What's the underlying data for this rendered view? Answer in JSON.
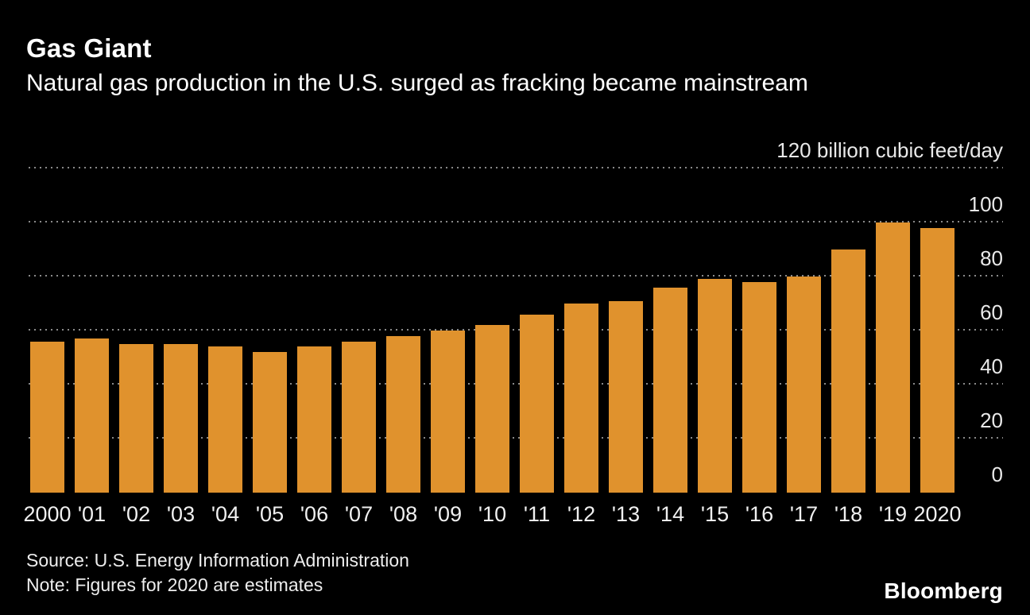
{
  "header": {
    "title": "Gas Giant",
    "subtitle": "Natural gas production in the U.S. surged as fracking became mainstream"
  },
  "chart_data": {
    "type": "bar",
    "title": "Gas Giant",
    "subtitle": "Natural gas production in the U.S. surged as fracking became mainstream",
    "unit_label": "120 billion cubic feet/day",
    "categories": [
      "2000",
      "'01",
      "'02",
      "'03",
      "'04",
      "'05",
      "'06",
      "'07",
      "'08",
      "'09",
      "'10",
      "'11",
      "'12",
      "'13",
      "'14",
      "'15",
      "'16",
      "'17",
      "'18",
      "'19",
      "2020"
    ],
    "values": [
      56,
      57,
      55,
      55,
      54,
      52,
      54,
      56,
      58,
      60,
      62,
      66,
      70,
      71,
      76,
      79,
      78,
      80,
      90,
      100,
      98
    ],
    "xlabel": "",
    "ylabel": "billion cubic feet/day",
    "ylim": [
      0,
      120
    ],
    "yticks": [
      {
        "value": 120,
        "label": "120 billion cubic feet/day",
        "line": true
      },
      {
        "value": 100,
        "label": "100",
        "line": true
      },
      {
        "value": 80,
        "label": "80",
        "line": true
      },
      {
        "value": 60,
        "label": "60",
        "line": true
      },
      {
        "value": 40,
        "label": "40",
        "line": true
      },
      {
        "value": 20,
        "label": "20",
        "line": true
      },
      {
        "value": 0,
        "label": "0",
        "line": false
      }
    ],
    "grid": "dotted horizontal, labels above lines at right",
    "legend": "none",
    "bar_color": "#E0922D"
  },
  "footer": {
    "source": "Source: U.S. Energy Information Administration",
    "note": "Note: Figures for 2020 are estimates",
    "logo": "Bloomberg"
  },
  "colors": {
    "background": "#000000",
    "title_text": "#FFFFFF",
    "tick_text": "#E9E9E9",
    "grid": "#8A8A8A",
    "bar": "#E0922D"
  }
}
